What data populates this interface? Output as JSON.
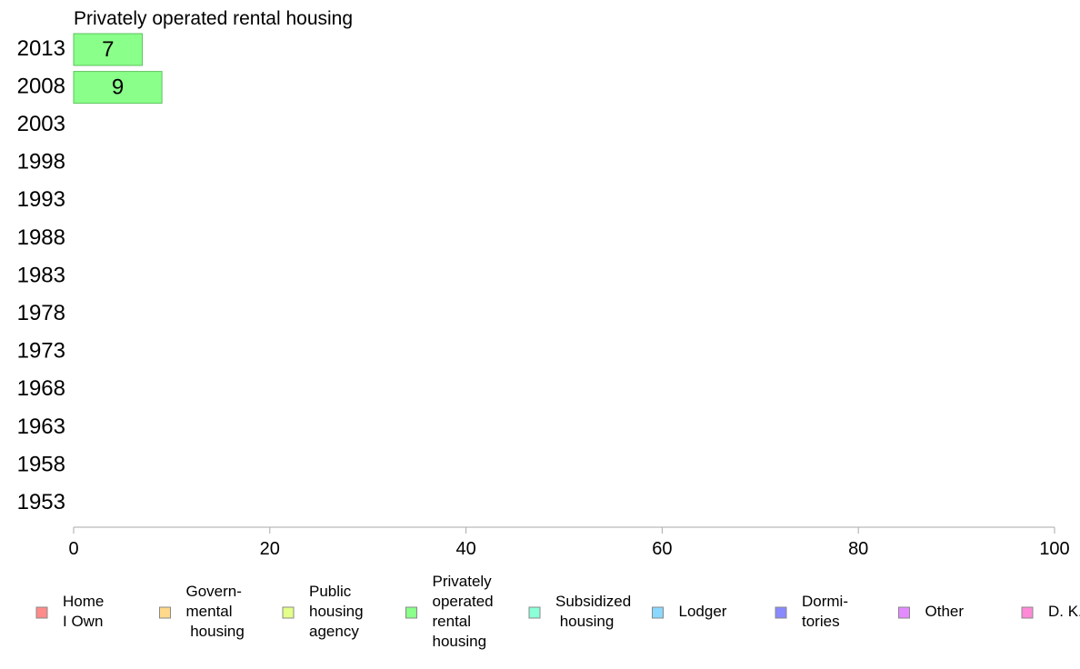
{
  "chart_data": {
    "type": "bar",
    "orientation": "horizontal",
    "title": "Privately operated rental housing",
    "categories": [
      "2013",
      "2008",
      "2003",
      "1998",
      "1993",
      "1988",
      "1983",
      "1978",
      "1973",
      "1968",
      "1963",
      "1958",
      "1953"
    ],
    "series": [
      {
        "name": "Privately operated rental housing",
        "values": [
          7,
          9,
          null,
          null,
          null,
          null,
          null,
          null,
          null,
          null,
          null,
          null,
          null
        ],
        "color": "#8aff8a"
      }
    ],
    "data_labels": [
      "7",
      "9"
    ],
    "xlim": [
      0,
      100
    ],
    "xticks": [
      "0",
      "20",
      "40",
      "60",
      "80",
      "100"
    ],
    "grid": false,
    "legend_position": "bottom",
    "legend": [
      {
        "lines": [
          "Home",
          "I Own"
        ],
        "color": "#ff8a8a"
      },
      {
        "lines": [
          "Govern-",
          "mental",
          " housing"
        ],
        "color": "#ffd88a"
      },
      {
        "lines": [
          "Public",
          "housing",
          "agency"
        ],
        "color": "#e4ff8a"
      },
      {
        "lines": [
          "Privately",
          "operated",
          "rental",
          "housing"
        ],
        "color": "#8aff8a"
      },
      {
        "lines": [
          "Subsidized",
          " housing"
        ],
        "color": "#8affd8"
      },
      {
        "lines": [
          "Lodger"
        ],
        "color": "#8ad8ff"
      },
      {
        "lines": [
          "Dormi-",
          "tories"
        ],
        "color": "#8a8aff"
      },
      {
        "lines": [
          "Other"
        ],
        "color": "#e48aff"
      },
      {
        "lines": [
          "D. K."
        ],
        "color": "#ff8ad8"
      }
    ]
  }
}
